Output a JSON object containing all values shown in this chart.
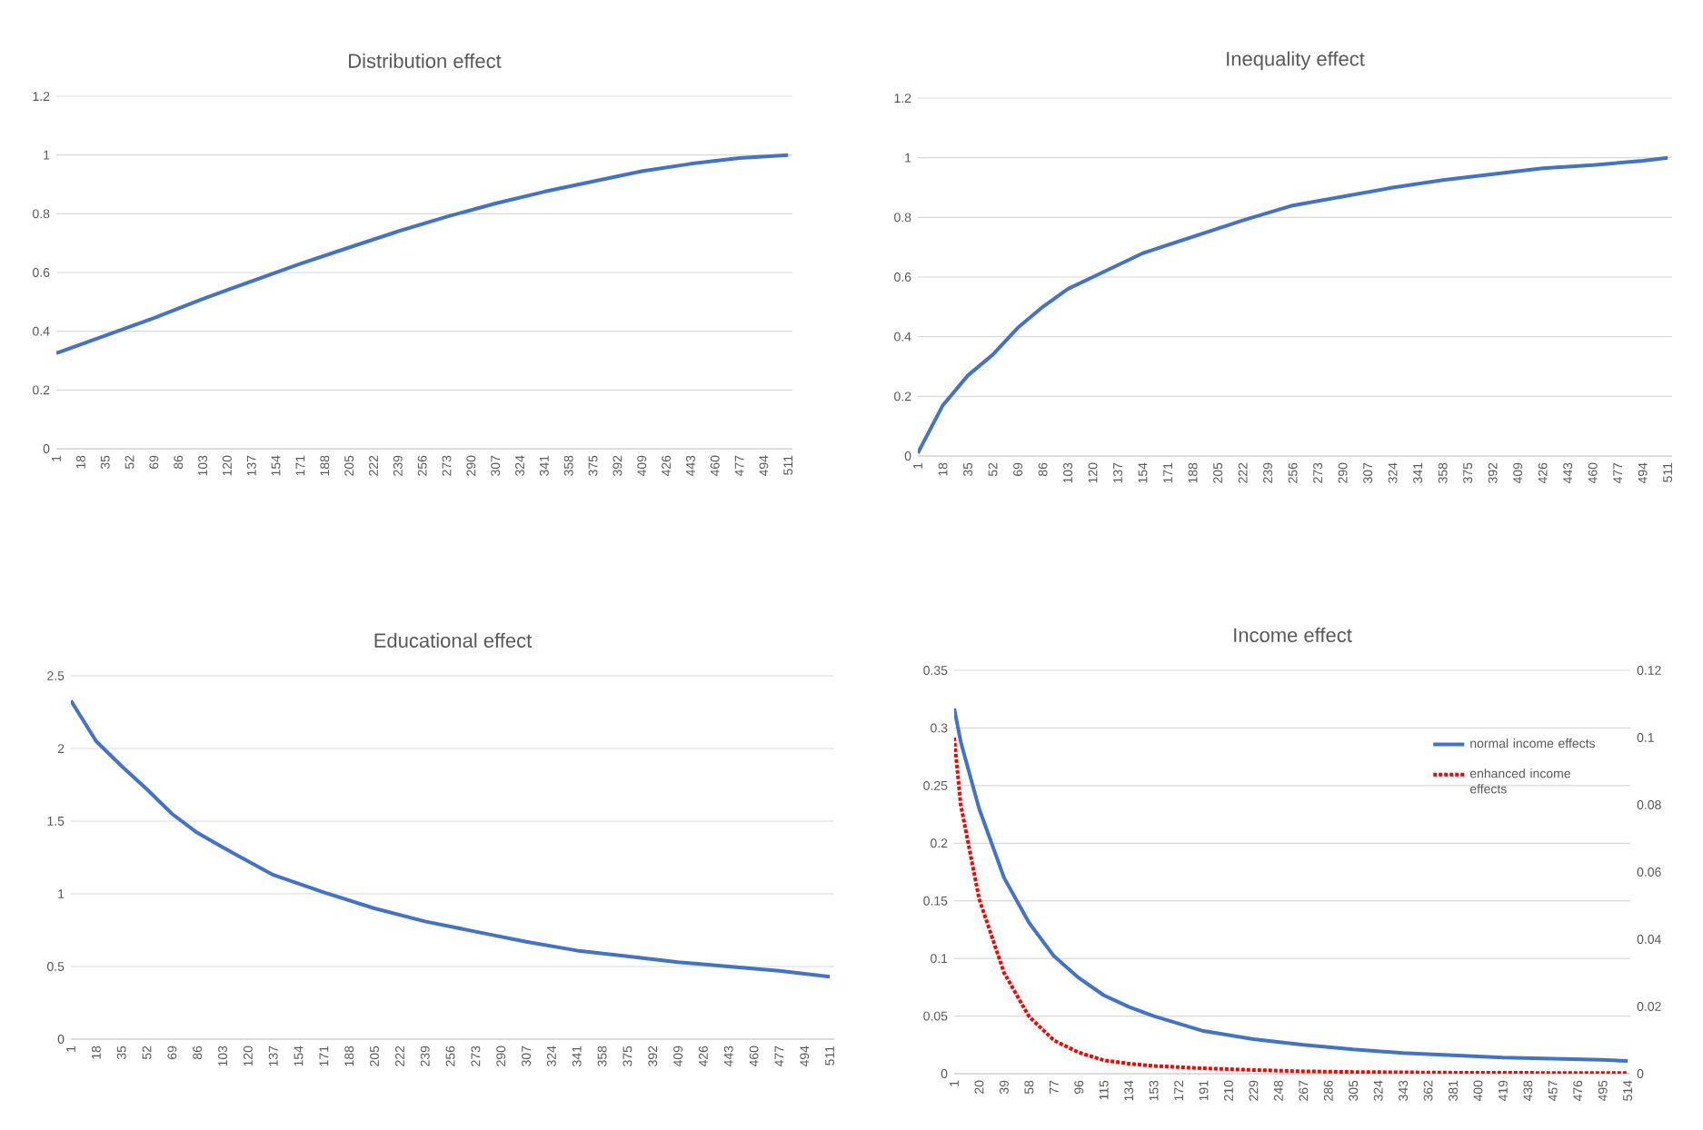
{
  "chart_data": [
    {
      "type": "line",
      "title": "Distribution effect",
      "grid": "y",
      "x": [
        1,
        35,
        69,
        103,
        137,
        171,
        205,
        239,
        273,
        307,
        341,
        375,
        409,
        443,
        477,
        511
      ],
      "series": [
        {
          "color": "#4472c4",
          "line_style": "solid",
          "values": [
            0.325,
            0.385,
            0.445,
            0.51,
            0.57,
            0.63,
            0.685,
            0.74,
            0.79,
            0.835,
            0.875,
            0.91,
            0.945,
            0.97,
            0.99,
            1.0
          ]
        }
      ],
      "xlim": [
        1,
        514
      ],
      "ylim": [
        0,
        1.2
      ],
      "yticks": [
        0,
        0.2,
        0.4,
        0.6,
        0.8,
        1,
        1.2
      ],
      "xticks": [
        1,
        18,
        35,
        52,
        69,
        86,
        103,
        120,
        137,
        154,
        171,
        188,
        205,
        222,
        239,
        256,
        273,
        290,
        307,
        324,
        341,
        358,
        375,
        392,
        409,
        426,
        443,
        460,
        477,
        494,
        511
      ]
    },
    {
      "type": "line",
      "title": "Inequality effect",
      "grid": "y",
      "x": [
        1,
        18,
        35,
        52,
        69,
        86,
        103,
        120,
        154,
        188,
        222,
        256,
        290,
        324,
        358,
        392,
        426,
        460,
        494,
        511
      ],
      "series": [
        {
          "color": "#4472c4",
          "line_style": "solid",
          "values": [
            0.01,
            0.17,
            0.27,
            0.34,
            0.43,
            0.5,
            0.56,
            0.6,
            0.68,
            0.735,
            0.79,
            0.84,
            0.87,
            0.9,
            0.925,
            0.945,
            0.965,
            0.975,
            0.99,
            1.0
          ]
        }
      ],
      "xlim": [
        1,
        514
      ],
      "ylim": [
        0,
        1.2
      ],
      "yticks": [
        0,
        0.2,
        0.4,
        0.6,
        0.8,
        1,
        1.2
      ],
      "xticks": [
        1,
        18,
        35,
        52,
        69,
        86,
        103,
        120,
        137,
        154,
        171,
        188,
        205,
        222,
        239,
        256,
        273,
        290,
        307,
        324,
        341,
        358,
        375,
        392,
        409,
        426,
        443,
        460,
        477,
        494,
        511
      ]
    },
    {
      "type": "line",
      "title": "Educational effect",
      "grid": "y",
      "x": [
        1,
        18,
        35,
        52,
        69,
        86,
        103,
        137,
        171,
        205,
        239,
        273,
        307,
        341,
        375,
        409,
        443,
        477,
        511
      ],
      "series": [
        {
          "color": "#4472c4",
          "line_style": "solid",
          "values": [
            2.33,
            2.05,
            1.88,
            1.72,
            1.55,
            1.42,
            1.32,
            1.13,
            1.01,
            0.9,
            0.81,
            0.74,
            0.67,
            0.61,
            0.57,
            0.53,
            0.5,
            0.47,
            0.43
          ]
        }
      ],
      "xlim": [
        1,
        514
      ],
      "ylim": [
        0,
        2.5
      ],
      "yticks": [
        0,
        0.5,
        1,
        1.5,
        2,
        2.5
      ],
      "xticks": [
        1,
        18,
        35,
        52,
        69,
        86,
        103,
        120,
        137,
        154,
        171,
        188,
        205,
        222,
        239,
        256,
        273,
        290,
        307,
        324,
        341,
        358,
        375,
        392,
        409,
        426,
        443,
        460,
        477,
        494,
        511
      ]
    },
    {
      "type": "line",
      "title": "Income effect",
      "grid": "y",
      "legend": "top right",
      "x": [
        1,
        6,
        20,
        39,
        58,
        77,
        96,
        115,
        134,
        153,
        191,
        229,
        267,
        305,
        343,
        381,
        419,
        457,
        495,
        514
      ],
      "series": [
        {
          "name": "normal income effects",
          "color": "#4472c4",
          "line_style": "solid",
          "values": [
            0.317,
            0.288,
            0.23,
            0.17,
            0.131,
            0.102,
            0.083,
            0.068,
            0.058,
            0.05,
            0.037,
            0.03,
            0.025,
            0.021,
            0.018,
            0.016,
            0.014,
            0.013,
            0.012,
            0.011
          ]
        },
        {
          "name": "enhanced income effects",
          "color": "#ff0000",
          "line_style": "dotted",
          "axis": "y2",
          "values": [
            0.1,
            0.08,
            0.052,
            0.03,
            0.017,
            0.0099,
            0.0063,
            0.004,
            0.003,
            0.0023,
            0.0016,
            0.0011,
            0.0007,
            0.0005,
            0.0004,
            0.0003,
            0.0003,
            0.0002,
            0.0002,
            0.0002
          ]
        }
      ],
      "xlim": [
        1,
        516
      ],
      "ylim": [
        0,
        0.35
      ],
      "yticks": [
        0,
        0.05,
        0.1,
        0.15,
        0.2,
        0.25,
        0.3,
        0.35
      ],
      "y2lim": [
        0,
        0.12
      ],
      "y2ticks": [
        0,
        0.02,
        0.04,
        0.06,
        0.08,
        0.1,
        0.12
      ],
      "xticks": [
        1,
        20,
        39,
        58,
        77,
        96,
        115,
        134,
        153,
        172,
        191,
        210,
        229,
        248,
        267,
        286,
        305,
        324,
        343,
        362,
        381,
        400,
        419,
        438,
        457,
        476,
        495,
        514
      ]
    }
  ]
}
